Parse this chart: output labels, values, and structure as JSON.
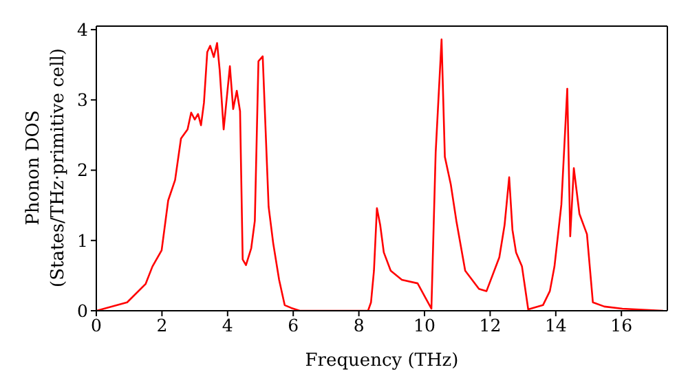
{
  "chart_data": {
    "type": "line",
    "xlabel": "Frequency (THz)",
    "ylabel": "Phonon DOS\n(States/THz·primitive cell)",
    "xlim": [
      0,
      17.4
    ],
    "xticks": [
      0,
      2,
      4,
      6,
      8,
      10,
      12,
      14,
      16
    ],
    "ylim": [
      0,
      4.05
    ],
    "yticks": [
      0,
      1,
      2,
      3,
      4
    ],
    "marker": "none",
    "line_style": "solid",
    "series": [
      {
        "color": "#ff0000",
        "x": [
          0,
          0.94,
          1.5,
          1.71,
          1.99,
          2.19,
          2.4,
          2.58,
          2.78,
          2.89,
          3.0,
          3.1,
          3.19,
          3.28,
          3.38,
          3.47,
          3.58,
          3.68,
          3.76,
          3.88,
          4.07,
          4.17,
          4.28,
          4.38,
          4.46,
          4.56,
          4.72,
          4.83,
          4.94,
          5.07,
          5.25,
          5.39,
          5.57,
          5.74,
          5.94,
          6.2,
          8.28,
          8.37,
          8.46,
          8.55,
          8.65,
          8.76,
          8.97,
          9.31,
          9.79,
          10.0,
          10.21,
          10.34,
          10.52,
          10.62,
          10.8,
          10.97,
          11.24,
          11.66,
          11.89,
          12.28,
          12.44,
          12.58,
          12.68,
          12.79,
          12.97,
          13.16,
          13.61,
          13.82,
          13.96,
          14.07,
          14.17,
          14.35,
          14.44,
          14.55,
          14.72,
          14.95,
          15.13,
          15.48,
          16.03,
          16.44,
          17.27
        ],
        "values": [
          0,
          0.12,
          0.38,
          0.63,
          0.86,
          1.57,
          1.86,
          2.45,
          2.58,
          2.82,
          2.72,
          2.8,
          2.64,
          2.96,
          3.68,
          3.77,
          3.61,
          3.81,
          3.42,
          2.58,
          3.48,
          2.87,
          3.13,
          2.84,
          0.73,
          0.65,
          0.89,
          1.28,
          3.55,
          3.62,
          1.48,
          0.96,
          0.44,
          0.08,
          0.04,
          0,
          0,
          0.12,
          0.57,
          1.46,
          1.22,
          0.83,
          0.57,
          0.44,
          0.39,
          0.21,
          0.03,
          2.25,
          3.86,
          2.19,
          1.8,
          1.28,
          0.57,
          0.31,
          0.28,
          0.76,
          1.22,
          1.9,
          1.15,
          0.83,
          0.63,
          0.02,
          0.08,
          0.28,
          0.63,
          1.09,
          1.51,
          3.16,
          1.06,
          2.03,
          1.38,
          1.09,
          0.12,
          0.06,
          0.03,
          0.02,
          0
        ]
      }
    ]
  }
}
